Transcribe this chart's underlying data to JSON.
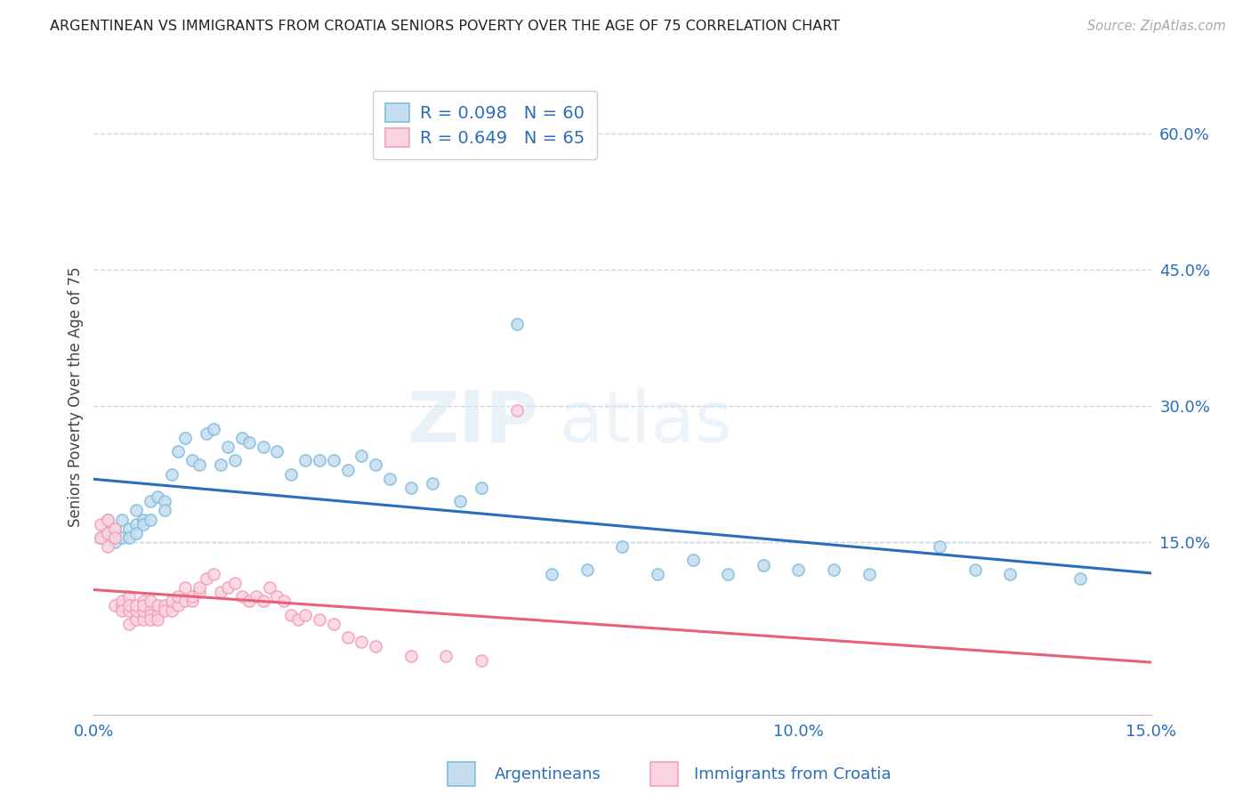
{
  "title": "ARGENTINEAN VS IMMIGRANTS FROM CROATIA SENIORS POVERTY OVER THE AGE OF 75 CORRELATION CHART",
  "source": "Source: ZipAtlas.com",
  "ylabel": "Seniors Poverty Over the Age of 75",
  "watermark": "ZIPatlas",
  "blue_R": 0.098,
  "blue_N": 60,
  "pink_R": 0.649,
  "pink_N": 65,
  "blue_color": "#7fbfde",
  "blue_fill": "#c6dcef",
  "pink_color": "#f4a0b8",
  "pink_fill": "#fad4e0",
  "line_blue": "#2a6ebb",
  "line_pink": "#e8607a",
  "legend_text_color": "#2a6ebb",
  "right_tick_color": "#2a6ebb",
  "xtick_color": "#2a6ebb",
  "grid_color": "#c8d8e8",
  "bg_color": "#ffffff",
  "xmin": 0.0,
  "xmax": 0.15,
  "ymin": -0.04,
  "ymax": 0.66,
  "yticks_right": [
    0.15,
    0.3,
    0.45,
    0.6
  ],
  "ytick_labels_right": [
    "15.0%",
    "30.0%",
    "45.0%",
    "60.0%"
  ],
  "xticks": [
    0.0,
    0.05,
    0.1,
    0.15
  ],
  "xtick_labels": [
    "0.0%",
    "",
    "10.0%",
    "15.0%"
  ],
  "blue_scatter_x": [
    0.001,
    0.002,
    0.002,
    0.003,
    0.003,
    0.004,
    0.004,
    0.005,
    0.005,
    0.006,
    0.006,
    0.006,
    0.007,
    0.007,
    0.008,
    0.008,
    0.009,
    0.01,
    0.01,
    0.011,
    0.012,
    0.013,
    0.014,
    0.015,
    0.016,
    0.017,
    0.018,
    0.019,
    0.02,
    0.021,
    0.022,
    0.024,
    0.026,
    0.028,
    0.03,
    0.032,
    0.034,
    0.036,
    0.038,
    0.04,
    0.042,
    0.045,
    0.048,
    0.052,
    0.055,
    0.06,
    0.065,
    0.07,
    0.075,
    0.08,
    0.085,
    0.09,
    0.095,
    0.1,
    0.105,
    0.11,
    0.12,
    0.125,
    0.13,
    0.14
  ],
  "blue_scatter_y": [
    0.155,
    0.175,
    0.16,
    0.165,
    0.15,
    0.155,
    0.175,
    0.165,
    0.155,
    0.17,
    0.16,
    0.185,
    0.175,
    0.17,
    0.195,
    0.175,
    0.2,
    0.195,
    0.185,
    0.225,
    0.25,
    0.265,
    0.24,
    0.235,
    0.27,
    0.275,
    0.235,
    0.255,
    0.24,
    0.265,
    0.26,
    0.255,
    0.25,
    0.225,
    0.24,
    0.24,
    0.24,
    0.23,
    0.245,
    0.235,
    0.22,
    0.21,
    0.215,
    0.195,
    0.21,
    0.39,
    0.115,
    0.12,
    0.145,
    0.115,
    0.13,
    0.115,
    0.125,
    0.12,
    0.12,
    0.115,
    0.145,
    0.12,
    0.115,
    0.11
  ],
  "pink_scatter_x": [
    0.001,
    0.001,
    0.002,
    0.002,
    0.002,
    0.003,
    0.003,
    0.003,
    0.004,
    0.004,
    0.004,
    0.005,
    0.005,
    0.005,
    0.005,
    0.006,
    0.006,
    0.006,
    0.007,
    0.007,
    0.007,
    0.007,
    0.008,
    0.008,
    0.008,
    0.008,
    0.009,
    0.009,
    0.009,
    0.01,
    0.01,
    0.011,
    0.011,
    0.012,
    0.012,
    0.013,
    0.013,
    0.014,
    0.014,
    0.015,
    0.015,
    0.016,
    0.017,
    0.018,
    0.019,
    0.02,
    0.021,
    0.022,
    0.023,
    0.024,
    0.025,
    0.026,
    0.027,
    0.028,
    0.029,
    0.03,
    0.032,
    0.034,
    0.036,
    0.038,
    0.04,
    0.045,
    0.05,
    0.055,
    0.06
  ],
  "pink_scatter_y": [
    0.17,
    0.155,
    0.16,
    0.145,
    0.175,
    0.165,
    0.155,
    0.08,
    0.08,
    0.085,
    0.075,
    0.075,
    0.09,
    0.08,
    0.06,
    0.065,
    0.075,
    0.08,
    0.085,
    0.065,
    0.075,
    0.08,
    0.075,
    0.07,
    0.065,
    0.085,
    0.07,
    0.08,
    0.065,
    0.08,
    0.075,
    0.075,
    0.085,
    0.08,
    0.09,
    0.085,
    0.1,
    0.085,
    0.09,
    0.095,
    0.1,
    0.11,
    0.115,
    0.095,
    0.1,
    0.105,
    0.09,
    0.085,
    0.09,
    0.085,
    0.1,
    0.09,
    0.085,
    0.07,
    0.065,
    0.07,
    0.065,
    0.06,
    0.045,
    0.04,
    0.035,
    0.025,
    0.025,
    0.02,
    0.295
  ]
}
